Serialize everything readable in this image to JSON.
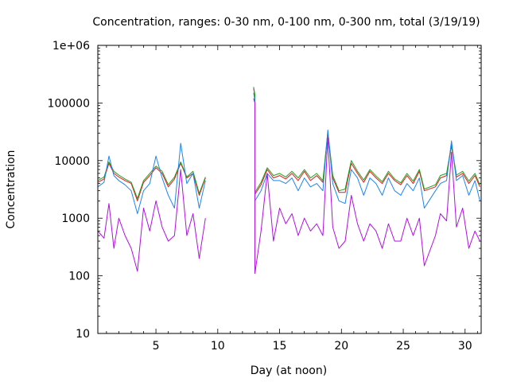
{
  "chart_data": {
    "type": "line",
    "title": "Concentration, ranges: 0-30 nm, 0-100 nm, 0-300 nm, total (3/19/19)",
    "xlabel": "Day (at noon)",
    "ylabel": "Concentration",
    "xlim": [
      0.3,
      31.3
    ],
    "ylim": [
      10,
      1000000
    ],
    "yscale": "log",
    "grid": false,
    "legend": "none",
    "x_ticks": [
      5,
      10,
      15,
      20,
      25,
      30
    ],
    "x_tick_labels": [
      "5",
      "10",
      "15",
      "20",
      "25",
      "30"
    ],
    "y_ticks": [
      10,
      100,
      1000,
      10000,
      100000,
      1000000
    ],
    "y_tick_labels": [
      "10",
      "100",
      "1000",
      "10000",
      "100000",
      "1e+06"
    ],
    "series": [
      {
        "color": "#e41a1c",
        "points": [
          [
            0.3,
            4200
          ],
          [
            0.8,
            4800
          ],
          [
            1.2,
            9000
          ],
          [
            1.6,
            6000
          ],
          [
            2.0,
            5200
          ],
          [
            2.5,
            4500
          ],
          [
            3.0,
            4000
          ],
          [
            3.5,
            2000
          ],
          [
            4.0,
            4200
          ],
          [
            4.5,
            5500
          ],
          [
            5.0,
            7500
          ],
          [
            5.5,
            6000
          ],
          [
            6.0,
            3500
          ],
          [
            6.5,
            4800
          ],
          [
            7.0,
            9000
          ],
          [
            7.5,
            5000
          ],
          [
            8.0,
            6000
          ],
          [
            8.5,
            2500
          ],
          [
            9.0,
            5000
          ],
          [
            12.9,
            180000
          ],
          [
            13.0,
            130000
          ],
          [
            13.0,
            2600
          ],
          [
            13.5,
            3800
          ],
          [
            14.0,
            7000
          ],
          [
            14.5,
            5000
          ],
          [
            15.0,
            5500
          ],
          [
            15.5,
            4800
          ],
          [
            16.0,
            6000
          ],
          [
            16.5,
            4500
          ],
          [
            17.0,
            6500
          ],
          [
            17.5,
            4500
          ],
          [
            18.0,
            5500
          ],
          [
            18.5,
            4200
          ],
          [
            18.9,
            30000
          ],
          [
            19.3,
            5000
          ],
          [
            19.8,
            2800
          ],
          [
            20.3,
            2800
          ],
          [
            20.8,
            9000
          ],
          [
            21.3,
            6000
          ],
          [
            21.8,
            4200
          ],
          [
            22.3,
            6500
          ],
          [
            22.8,
            5000
          ],
          [
            23.3,
            4000
          ],
          [
            23.8,
            6000
          ],
          [
            24.3,
            4500
          ],
          [
            24.8,
            3800
          ],
          [
            25.3,
            5500
          ],
          [
            25.8,
            4000
          ],
          [
            26.3,
            6500
          ],
          [
            26.7,
            3000
          ],
          [
            27.6,
            3500
          ],
          [
            28.0,
            5000
          ],
          [
            28.5,
            5500
          ],
          [
            28.9,
            18000
          ],
          [
            29.3,
            5200
          ],
          [
            29.8,
            6000
          ],
          [
            30.3,
            4000
          ],
          [
            30.8,
            5500
          ],
          [
            31.2,
            3500
          ]
        ]
      },
      {
        "color": "#1fa01f",
        "points": [
          [
            0.3,
            4500
          ],
          [
            0.8,
            5200
          ],
          [
            1.2,
            9500
          ],
          [
            1.6,
            6500
          ],
          [
            2.0,
            5600
          ],
          [
            2.5,
            4800
          ],
          [
            3.0,
            4200
          ],
          [
            3.5,
            2200
          ],
          [
            4.0,
            4500
          ],
          [
            4.5,
            6000
          ],
          [
            5.0,
            8000
          ],
          [
            5.5,
            6500
          ],
          [
            6.0,
            3800
          ],
          [
            6.5,
            5200
          ],
          [
            7.0,
            9500
          ],
          [
            7.5,
            5200
          ],
          [
            8.0,
            6500
          ],
          [
            8.5,
            2700
          ],
          [
            9.0,
            5200
          ],
          [
            12.9,
            190000
          ],
          [
            13.0,
            140000
          ],
          [
            13.0,
            2800
          ],
          [
            13.5,
            4200
          ],
          [
            14.0,
            7500
          ],
          [
            14.5,
            5500
          ],
          [
            15.0,
            6000
          ],
          [
            15.5,
            5200
          ],
          [
            16.0,
            6500
          ],
          [
            16.5,
            5000
          ],
          [
            17.0,
            7000
          ],
          [
            17.5,
            5000
          ],
          [
            18.0,
            6000
          ],
          [
            18.5,
            4500
          ],
          [
            18.9,
            32000
          ],
          [
            19.3,
            5500
          ],
          [
            19.8,
            3000
          ],
          [
            20.3,
            3200
          ],
          [
            20.8,
            10000
          ],
          [
            21.3,
            6500
          ],
          [
            21.8,
            4600
          ],
          [
            22.3,
            7000
          ],
          [
            22.8,
            5400
          ],
          [
            23.3,
            4300
          ],
          [
            23.8,
            6500
          ],
          [
            24.3,
            4800
          ],
          [
            24.8,
            4100
          ],
          [
            25.3,
            6000
          ],
          [
            25.8,
            4400
          ],
          [
            26.3,
            7000
          ],
          [
            26.7,
            3200
          ],
          [
            27.6,
            3800
          ],
          [
            28.0,
            5500
          ],
          [
            28.5,
            6000
          ],
          [
            28.9,
            19000
          ],
          [
            29.3,
            5600
          ],
          [
            29.8,
            6500
          ],
          [
            30.3,
            4400
          ],
          [
            30.8,
            6000
          ],
          [
            31.2,
            3800
          ]
        ]
      },
      {
        "color": "#1c86ee",
        "points": [
          [
            0.3,
            3500
          ],
          [
            0.8,
            4200
          ],
          [
            1.2,
            12000
          ],
          [
            1.6,
            5500
          ],
          [
            2.0,
            4500
          ],
          [
            2.5,
            3800
          ],
          [
            3.0,
            3000
          ],
          [
            3.5,
            1200
          ],
          [
            4.0,
            3000
          ],
          [
            4.5,
            4000
          ],
          [
            5.0,
            12000
          ],
          [
            5.5,
            5000
          ],
          [
            6.0,
            2500
          ],
          [
            6.5,
            1500
          ],
          [
            7.0,
            20000
          ],
          [
            7.5,
            4000
          ],
          [
            8.0,
            6000
          ],
          [
            8.5,
            1500
          ],
          [
            9.0,
            4500
          ],
          [
            12.9,
            150000
          ],
          [
            13.0,
            110000
          ],
          [
            13.0,
            2000
          ],
          [
            13.5,
            3000
          ],
          [
            14.0,
            6000
          ],
          [
            14.5,
            4500
          ],
          [
            15.0,
            4500
          ],
          [
            15.5,
            4000
          ],
          [
            16.0,
            5000
          ],
          [
            16.5,
            3000
          ],
          [
            17.0,
            5000
          ],
          [
            17.5,
            3500
          ],
          [
            18.0,
            4000
          ],
          [
            18.5,
            3000
          ],
          [
            18.9,
            34000
          ],
          [
            19.3,
            4000
          ],
          [
            19.8,
            2000
          ],
          [
            20.3,
            1800
          ],
          [
            20.8,
            7000
          ],
          [
            21.3,
            5000
          ],
          [
            21.8,
            2500
          ],
          [
            22.3,
            5000
          ],
          [
            22.8,
            4000
          ],
          [
            23.3,
            2500
          ],
          [
            23.8,
            5000
          ],
          [
            24.3,
            3000
          ],
          [
            24.8,
            2500
          ],
          [
            25.3,
            4000
          ],
          [
            25.8,
            3000
          ],
          [
            26.3,
            5000
          ],
          [
            26.7,
            1500
          ],
          [
            27.6,
            3000
          ],
          [
            28.0,
            4000
          ],
          [
            28.5,
            4500
          ],
          [
            28.9,
            22000
          ],
          [
            29.3,
            4500
          ],
          [
            29.8,
            5500
          ],
          [
            30.3,
            2500
          ],
          [
            30.8,
            4500
          ],
          [
            31.2,
            2000
          ]
        ]
      },
      {
        "color": "#b010e0",
        "points": [
          [
            0.3,
            600
          ],
          [
            0.8,
            450
          ],
          [
            1.2,
            1800
          ],
          [
            1.6,
            300
          ],
          [
            2.0,
            1000
          ],
          [
            2.5,
            500
          ],
          [
            3.0,
            300
          ],
          [
            3.5,
            120
          ],
          [
            4.0,
            1500
          ],
          [
            4.5,
            600
          ],
          [
            5.0,
            2000
          ],
          [
            5.5,
            700
          ],
          [
            6.0,
            400
          ],
          [
            6.5,
            500
          ],
          [
            7.0,
            7000
          ],
          [
            7.5,
            500
          ],
          [
            8.0,
            1200
          ],
          [
            8.5,
            200
          ],
          [
            9.0,
            1000
          ],
          [
            12.9,
            120000
          ],
          [
            13.0,
            100000
          ],
          [
            13.0,
            110
          ],
          [
            13.5,
            600
          ],
          [
            14.0,
            6000
          ],
          [
            14.5,
            400
          ],
          [
            15.0,
            1500
          ],
          [
            15.5,
            800
          ],
          [
            16.0,
            1200
          ],
          [
            16.5,
            500
          ],
          [
            17.0,
            1000
          ],
          [
            17.5,
            600
          ],
          [
            18.0,
            800
          ],
          [
            18.5,
            500
          ],
          [
            18.9,
            25000
          ],
          [
            19.3,
            700
          ],
          [
            19.8,
            300
          ],
          [
            20.3,
            400
          ],
          [
            20.8,
            2500
          ],
          [
            21.3,
            800
          ],
          [
            21.8,
            400
          ],
          [
            22.3,
            800
          ],
          [
            22.8,
            600
          ],
          [
            23.3,
            300
          ],
          [
            23.8,
            800
          ],
          [
            24.3,
            400
          ],
          [
            24.8,
            400
          ],
          [
            25.3,
            1000
          ],
          [
            25.8,
            500
          ],
          [
            26.3,
            1000
          ],
          [
            26.7,
            150
          ],
          [
            27.6,
            500
          ],
          [
            28.0,
            1200
          ],
          [
            28.5,
            900
          ],
          [
            28.9,
            14000
          ],
          [
            29.3,
            700
          ],
          [
            29.8,
            1500
          ],
          [
            30.3,
            300
          ],
          [
            30.8,
            600
          ],
          [
            31.2,
            400
          ]
        ]
      }
    ]
  }
}
